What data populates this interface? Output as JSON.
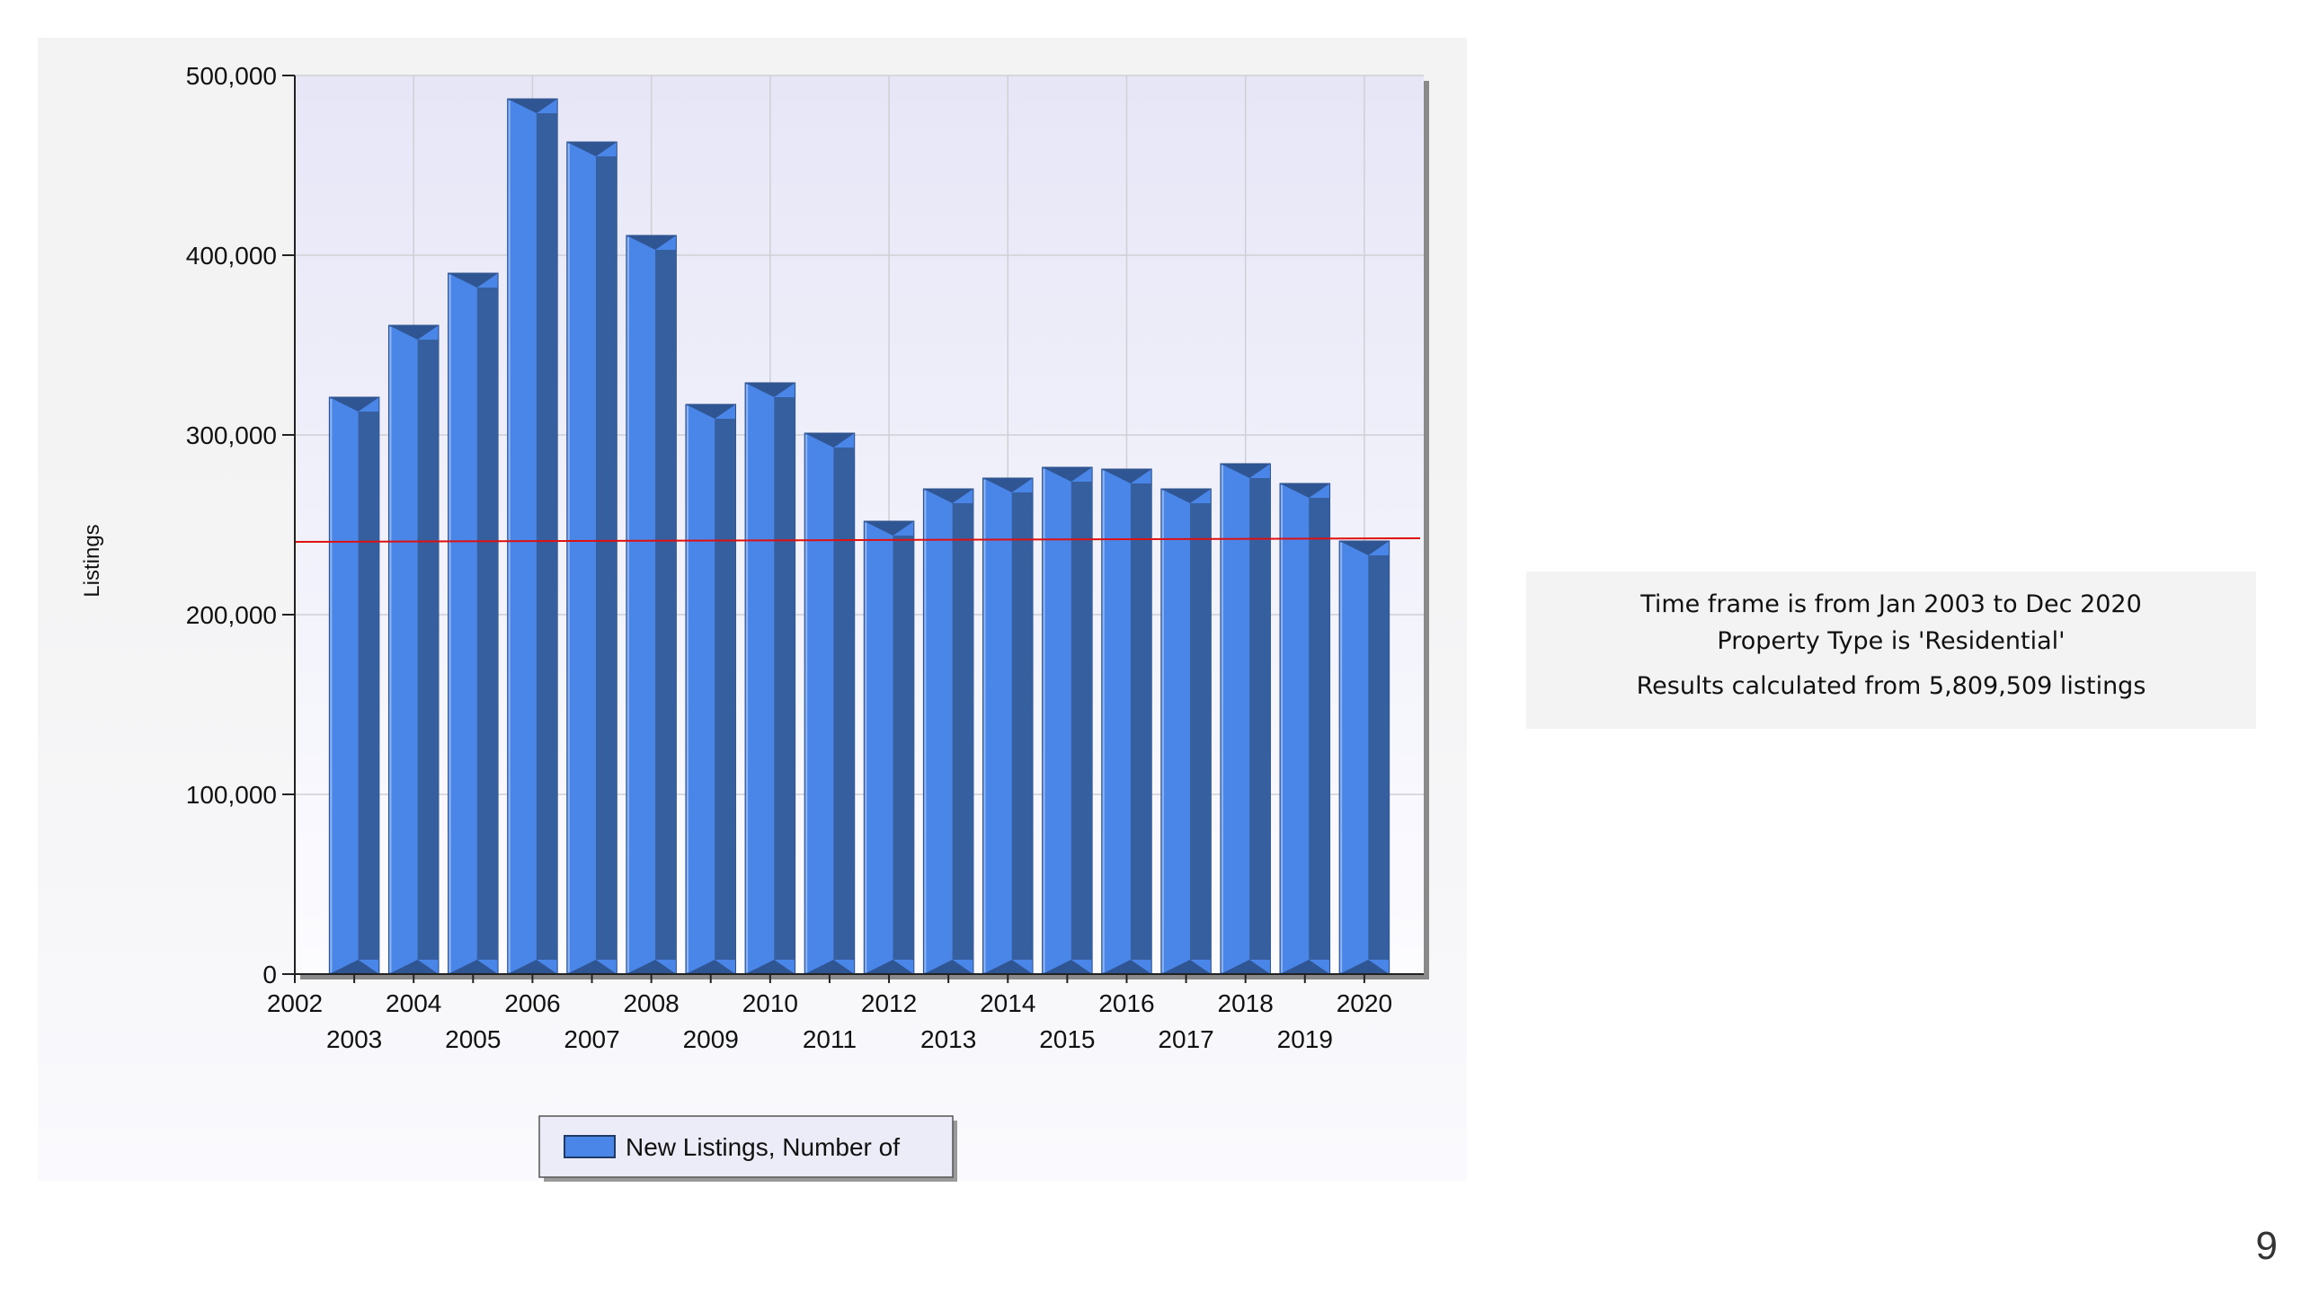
{
  "chart_data": {
    "type": "bar",
    "categories": [
      "2003",
      "2004",
      "2005",
      "2006",
      "2007",
      "2008",
      "2009",
      "2010",
      "2011",
      "2012",
      "2013",
      "2014",
      "2015",
      "2016",
      "2017",
      "2018",
      "2019",
      "2020"
    ],
    "series": [
      {
        "name": "New Listings, Number of",
        "values": [
          321000,
          361000,
          390000,
          487000,
          463000,
          411000,
          317000,
          329000,
          301000,
          252000,
          270000,
          276000,
          282000,
          281000,
          270000,
          284000,
          273000,
          241000
        ],
        "color": "#4a86e8"
      }
    ],
    "xlabel": "",
    "ylabel": "Listings",
    "ylim": [
      0,
      500000
    ],
    "yticks": [
      "0",
      "100,000",
      "200,000",
      "300,000",
      "400,000",
      "500,000"
    ],
    "xlim": [
      2002,
      2021
    ],
    "xtick_labels_top": [
      "2002",
      "2004",
      "2006",
      "2008",
      "2010",
      "2012",
      "2014",
      "2016",
      "2018",
      "2020"
    ],
    "xtick_labels_bottom": [
      "2003",
      "2005",
      "2007",
      "2009",
      "2011",
      "2013",
      "2015",
      "2017",
      "2019"
    ],
    "reference_line": {
      "start": 240500,
      "end": 242500,
      "color": "#e01010"
    },
    "grid": true,
    "legend_position": "bottom-center"
  },
  "info": {
    "line1": "Time frame is from Jan 2003 to Dec 2020",
    "line2": "Property Type is 'Residential'",
    "line3": "Results calculated from 5,809,509 listings"
  },
  "page_number": "9"
}
